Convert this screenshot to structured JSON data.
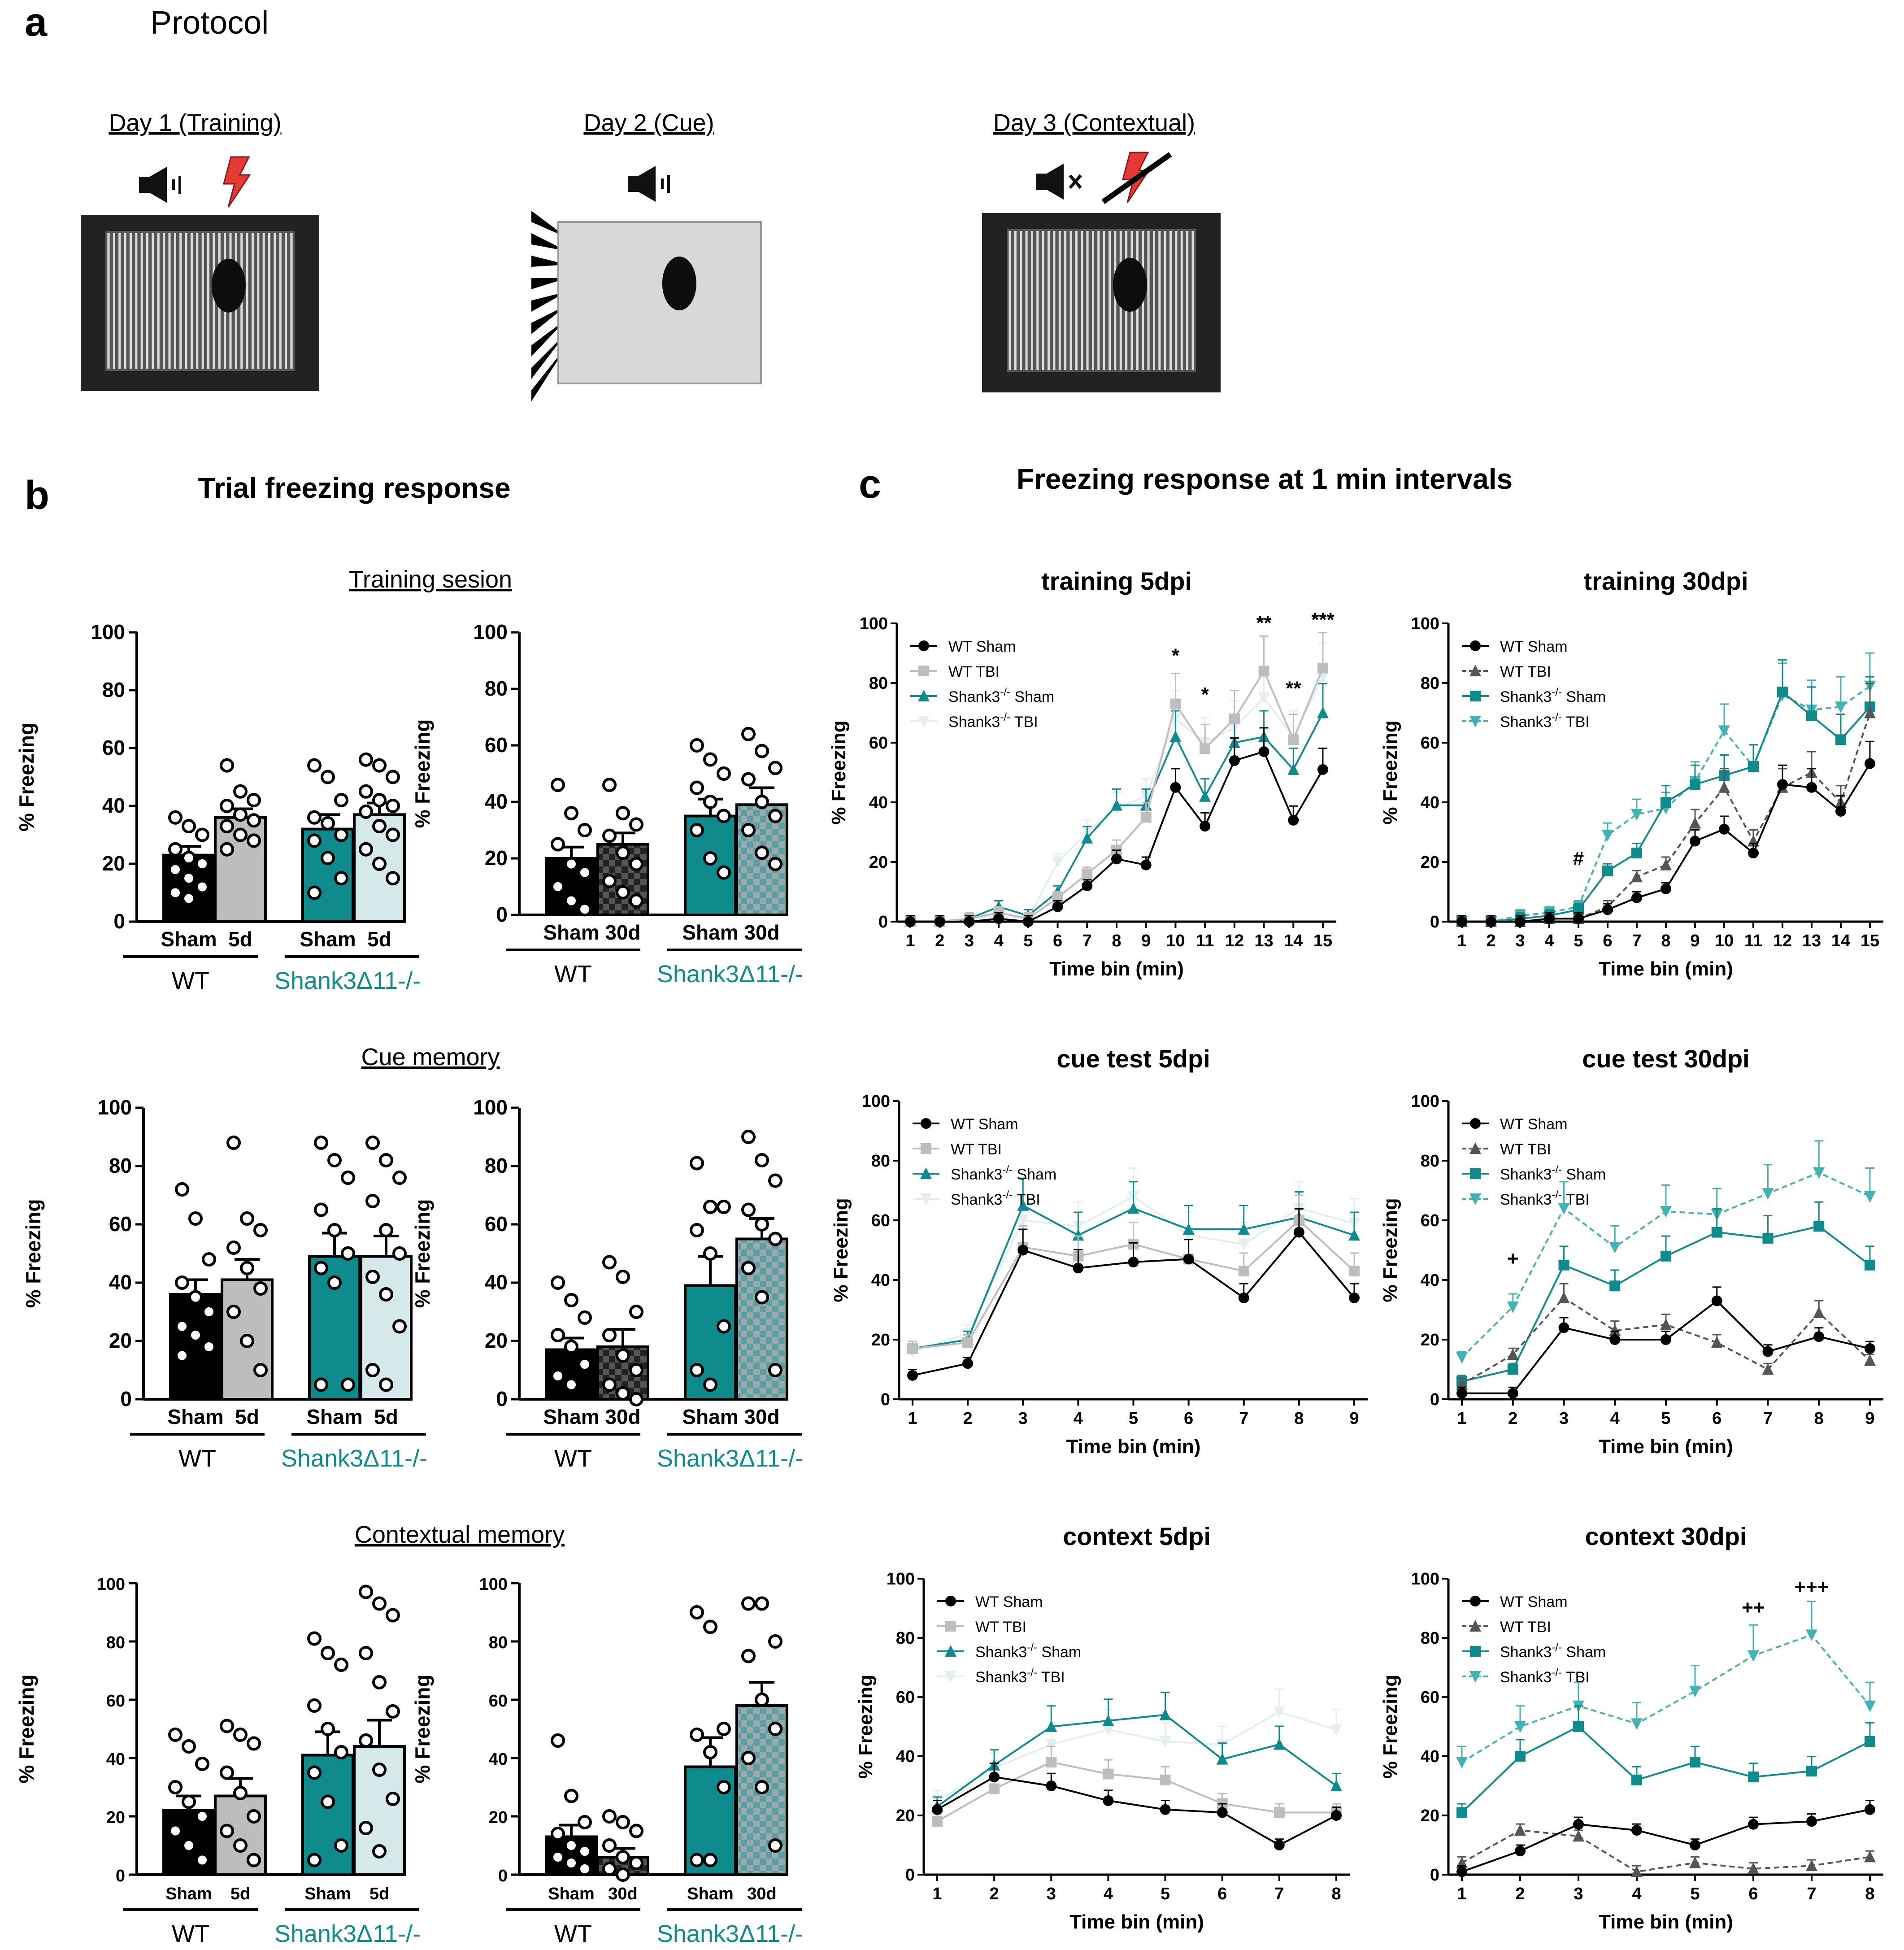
{
  "figure": {
    "panel_labels": [
      "a",
      "b",
      "c"
    ],
    "protocol_title": "Protocol",
    "days": [
      {
        "label": "Day 1 (Training)",
        "icons": [
          "speaker-icon",
          "shock-icon"
        ]
      },
      {
        "label": "Day 2 (Cue)",
        "icons": [
          "speaker-icon"
        ]
      },
      {
        "label": "Day 3 (Contextual)",
        "icons": [
          "speaker-muted-icon",
          "shock-crossed-icon"
        ]
      }
    ],
    "panel_b_title": "Trial freezing response",
    "panel_c_title": "Freezing response at 1 min intervals",
    "section_titles": [
      "Training sesion",
      "Cue memory",
      "Contextual memory"
    ],
    "group_labels": {
      "wt": "WT",
      "ko": "Shank3Δ11-/-"
    }
  },
  "colors": {
    "wt_sham": "#000000",
    "wt_tbi": "#bdbdbd",
    "ko_sham": "#0f8b8d",
    "ko_tbi": "#d5e8ea",
    "ko_tbi_line": "#43b2b2",
    "wt_tbi_line30": "#555555"
  },
  "chart_data": [
    {
      "type": "bar",
      "id": "b-train-5d",
      "title": "Training sesion",
      "ylabel": "% Freezing",
      "ylim": [
        0,
        100
      ],
      "yticks": [
        0,
        20,
        40,
        60,
        80,
        100
      ],
      "categories": [
        "Sham",
        "5d",
        "Sham",
        "5d"
      ],
      "groups": [
        "WT",
        "Shank3Δ11-/-"
      ],
      "values": [
        23,
        36,
        32,
        37
      ],
      "errors": [
        3,
        3,
        5,
        4
      ],
      "points": [
        [
          36,
          33,
          30,
          25,
          22,
          20,
          18,
          15,
          12,
          10,
          8
        ],
        [
          54,
          45,
          42,
          40,
          37,
          35,
          33,
          30,
          28,
          25
        ],
        [
          54,
          50,
          42,
          36,
          34,
          30,
          28,
          22,
          15,
          10
        ],
        [
          56,
          54,
          50,
          45,
          42,
          40,
          38,
          33,
          30,
          25,
          20,
          15
        ]
      ]
    },
    {
      "type": "bar",
      "id": "b-train-30d",
      "title": "",
      "ylabel": "% Freezing",
      "ylim": [
        0,
        100
      ],
      "yticks": [
        0,
        20,
        40,
        60,
        80,
        100
      ],
      "categories": [
        "Sham",
        "30d",
        "Sham",
        "30d"
      ],
      "groups": [
        "WT",
        "Shank3Δ11-/-"
      ],
      "values": [
        20,
        25,
        35,
        39
      ],
      "errors": [
        4,
        4,
        6,
        6
      ],
      "points": [
        [
          46,
          36,
          30,
          25,
          18,
          15,
          10,
          5,
          2
        ],
        [
          46,
          36,
          32,
          28,
          22,
          18,
          12,
          8,
          5
        ],
        [
          60,
          55,
          50,
          45,
          40,
          35,
          30,
          20,
          15
        ],
        [
          64,
          58,
          52,
          48,
          40,
          35,
          30,
          22,
          18
        ]
      ]
    },
    {
      "type": "bar",
      "id": "b-cue-5d",
      "title": "Cue memory",
      "ylabel": "% Freezing",
      "ylim": [
        0,
        100
      ],
      "yticks": [
        0,
        20,
        40,
        60,
        80,
        100
      ],
      "categories": [
        "Sham",
        "5d",
        "Sham",
        "5d"
      ],
      "groups": [
        "WT",
        "Shank3Δ11-/-"
      ],
      "values": [
        36,
        41,
        49,
        49
      ],
      "errors": [
        5,
        7,
        8,
        7
      ],
      "points": [
        [
          72,
          62,
          48,
          40,
          35,
          30,
          25,
          22,
          18,
          15
        ],
        [
          88,
          62,
          58,
          52,
          45,
          38,
          30,
          20,
          10
        ],
        [
          88,
          82,
          76,
          65,
          58,
          50,
          45,
          40,
          5,
          5
        ],
        [
          88,
          82,
          76,
          68,
          58,
          50,
          42,
          36,
          25,
          10,
          5
        ]
      ]
    },
    {
      "type": "bar",
      "id": "b-cue-30d",
      "title": "",
      "ylabel": "% Freezing",
      "ylim": [
        0,
        100
      ],
      "yticks": [
        0,
        20,
        40,
        60,
        80,
        100
      ],
      "categories": [
        "Sham",
        "30d",
        "Sham",
        "30d"
      ],
      "groups": [
        "WT",
        "Shank3Δ11-/-"
      ],
      "values": [
        17,
        18,
        39,
        55
      ],
      "errors": [
        4,
        6,
        10,
        7
      ],
      "points": [
        [
          40,
          34,
          28,
          22,
          18,
          12,
          8,
          5
        ],
        [
          47,
          42,
          30,
          22,
          15,
          10,
          5,
          2,
          0
        ],
        [
          81,
          66,
          66,
          58,
          50,
          25,
          10,
          5
        ],
        [
          90,
          82,
          75,
          65,
          60,
          55,
          45,
          35,
          10
        ]
      ]
    },
    {
      "type": "bar",
      "id": "b-context-5d",
      "title": "Contextual memory",
      "ylabel": "% Freezing",
      "ylim": [
        0,
        100
      ],
      "yticks": [
        0,
        20,
        40,
        60,
        80,
        100
      ],
      "categories": [
        "Sham",
        "5d",
        "Sham",
        "5d"
      ],
      "groups": [
        "WT",
        "Shank3Δ11-/-"
      ],
      "values": [
        22,
        27,
        41,
        44
      ],
      "errors": [
        5,
        6,
        8,
        9
      ],
      "points": [
        [
          48,
          44,
          38,
          30,
          25,
          20,
          15,
          10,
          5
        ],
        [
          51,
          48,
          45,
          35,
          28,
          20,
          15,
          10,
          5
        ],
        [
          81,
          76,
          72,
          58,
          50,
          42,
          35,
          25,
          10,
          5
        ],
        [
          97,
          93,
          89,
          76,
          66,
          56,
          46,
          36,
          26,
          16,
          8
        ]
      ]
    },
    {
      "type": "bar",
      "id": "b-context-30d",
      "title": "",
      "ylabel": "% Freezing",
      "ylim": [
        0,
        100
      ],
      "yticks": [
        0,
        20,
        40,
        60,
        80,
        100
      ],
      "categories": [
        "Sham",
        "30d",
        "Sham",
        "30d"
      ],
      "groups": [
        "WT",
        "Shank3Δ11-/-"
      ],
      "values": [
        13,
        6,
        37,
        58
      ],
      "errors": [
        4,
        3,
        10,
        8
      ],
      "points": [
        [
          46,
          27,
          18,
          14,
          10,
          8,
          6,
          4,
          2
        ],
        [
          20,
          18,
          15,
          10,
          6,
          4,
          2,
          0
        ],
        [
          90,
          85,
          50,
          48,
          42,
          30,
          5,
          5
        ],
        [
          93,
          93,
          80,
          75,
          60,
          50,
          40,
          30,
          10
        ]
      ]
    },
    {
      "type": "line",
      "id": "c-train-5dpi",
      "title": "training 5dpi",
      "xlabel": "Time bin (min)",
      "ylabel": "% Freezing",
      "x": [
        1,
        2,
        3,
        4,
        5,
        6,
        7,
        8,
        9,
        10,
        11,
        12,
        13,
        14,
        15
      ],
      "ylim": [
        0,
        100
      ],
      "yticks": [
        0,
        20,
        40,
        60,
        80,
        100
      ],
      "series": [
        {
          "name": "WT Sham",
          "marker": "circle",
          "values": [
            0,
            0,
            0,
            1,
            0,
            5,
            12,
            21,
            19,
            45,
            32,
            54,
            57,
            34,
            51
          ]
        },
        {
          "name": "WT TBI",
          "marker": "square",
          "values": [
            0,
            0,
            1,
            3,
            1,
            8,
            16,
            24,
            35,
            73,
            58,
            68,
            84,
            61,
            85
          ]
        },
        {
          "name": "Shank3-/- Sham",
          "sup": "-/-",
          "marker": "triangle",
          "values": [
            0,
            0,
            1,
            5,
            2,
            10,
            28,
            39,
            39,
            62,
            42,
            60,
            62,
            51,
            70
          ]
        },
        {
          "name": "Shank3-/- TBI",
          "sup": "-/-",
          "marker": "tri-down",
          "values": [
            0,
            0,
            1,
            2,
            1,
            20,
            30,
            38,
            42,
            68,
            60,
            65,
            75,
            62,
            82
          ]
        }
      ],
      "annotations": [
        {
          "x": 10,
          "text": "*"
        },
        {
          "x": 11,
          "text": "*"
        },
        {
          "x": 13,
          "text": "**"
        },
        {
          "x": 14,
          "text": "**"
        },
        {
          "x": 15,
          "text": "***"
        }
      ]
    },
    {
      "type": "line",
      "id": "c-train-30dpi",
      "title": "training 30dpi",
      "xlabel": "Time bin (min)",
      "ylabel": "% Freezing",
      "x": [
        1,
        2,
        3,
        4,
        5,
        6,
        7,
        8,
        9,
        10,
        11,
        12,
        13,
        14,
        15
      ],
      "ylim": [
        0,
        100
      ],
      "yticks": [
        0,
        20,
        40,
        60,
        80,
        100
      ],
      "series": [
        {
          "name": "WT Sham",
          "marker": "circle",
          "values": [
            0,
            0,
            0,
            1,
            1,
            4,
            8,
            11,
            27,
            31,
            23,
            46,
            45,
            37,
            53
          ]
        },
        {
          "name": "WT TBI",
          "marker": "triangle",
          "dashed": true,
          "values": [
            0,
            0,
            0,
            1,
            1,
            5,
            15,
            19,
            33,
            45,
            27,
            45,
            50,
            40,
            70
          ]
        },
        {
          "name": "Shank3-/- Sham",
          "sup": "-/-",
          "marker": "square",
          "values": [
            0,
            0,
            1,
            2,
            4,
            17,
            23,
            40,
            46,
            49,
            52,
            77,
            69,
            61,
            72
          ]
        },
        {
          "name": "Shank3-/- TBI",
          "sup": "-/-",
          "marker": "tri-down",
          "dashed": true,
          "values": [
            0,
            0,
            2,
            3,
            5,
            29,
            36,
            38,
            47,
            64,
            52,
            76,
            71,
            72,
            79
          ]
        }
      ],
      "annotations": [
        {
          "x": 5,
          "text": "#"
        }
      ]
    },
    {
      "type": "line",
      "id": "c-cue-5dpi",
      "title": "cue test 5dpi",
      "xlabel": "Time bin (min)",
      "ylabel": "% Freezing",
      "x": [
        1,
        2,
        3,
        4,
        5,
        6,
        7,
        8,
        9
      ],
      "ylim": [
        0,
        100
      ],
      "yticks": [
        0,
        20,
        40,
        60,
        80,
        100
      ],
      "series": [
        {
          "name": "WT Sham",
          "marker": "circle",
          "values": [
            8,
            12,
            50,
            44,
            46,
            47,
            34,
            56,
            34
          ]
        },
        {
          "name": "WT TBI",
          "marker": "square",
          "values": [
            17,
            19,
            51,
            48,
            52,
            47,
            43,
            60,
            43
          ]
        },
        {
          "name": "Shank3-/- Sham",
          "sup": "-/-",
          "marker": "triangle",
          "values": [
            17,
            20,
            65,
            55,
            64,
            57,
            57,
            61,
            55
          ]
        },
        {
          "name": "Shank3-/- TBI",
          "sup": "-/-",
          "marker": "tri-down",
          "values": [
            16,
            22,
            60,
            58,
            68,
            55,
            52,
            64,
            59
          ]
        }
      ],
      "annotations": []
    },
    {
      "type": "line",
      "id": "c-cue-30dpi",
      "title": "cue test 30dpi",
      "xlabel": "Time bin (min)",
      "ylabel": "% Freezing",
      "x": [
        1,
        2,
        3,
        4,
        5,
        6,
        7,
        8,
        9
      ],
      "ylim": [
        0,
        100
      ],
      "yticks": [
        0,
        20,
        40,
        60,
        80,
        100
      ],
      "series": [
        {
          "name": "WT Sham",
          "marker": "circle",
          "values": [
            2,
            2,
            24,
            20,
            20,
            33,
            16,
            21,
            17
          ]
        },
        {
          "name": "WT TBI",
          "marker": "triangle",
          "dashed": true,
          "values": [
            5,
            15,
            34,
            23,
            25,
            19,
            10,
            29,
            13
          ]
        },
        {
          "name": "Shank3-/- Sham",
          "sup": "-/-",
          "marker": "square",
          "values": [
            6,
            10,
            45,
            38,
            48,
            56,
            54,
            58,
            45
          ]
        },
        {
          "name": "Shank3-/- TBI",
          "sup": "-/-",
          "marker": "tri-down",
          "dashed": true,
          "values": [
            14,
            31,
            64,
            51,
            63,
            62,
            69,
            76,
            68
          ]
        }
      ],
      "annotations": [
        {
          "x": 2,
          "text": "+"
        }
      ]
    },
    {
      "type": "line",
      "id": "c-context-5dpi",
      "title": "context 5dpi",
      "xlabel": "Time bin (min)",
      "ylabel": "% Freezing",
      "x": [
        1,
        2,
        3,
        4,
        5,
        6,
        7,
        8
      ],
      "ylim": [
        0,
        100
      ],
      "yticks": [
        0,
        20,
        40,
        60,
        80,
        100
      ],
      "series": [
        {
          "name": "WT Sham",
          "marker": "circle",
          "values": [
            22,
            33,
            30,
            25,
            22,
            21,
            10,
            20
          ]
        },
        {
          "name": "WT TBI",
          "marker": "square",
          "values": [
            18,
            29,
            38,
            34,
            32,
            24,
            21,
            21
          ]
        },
        {
          "name": "Shank3-/- Sham",
          "sup": "-/-",
          "marker": "triangle",
          "values": [
            23,
            37,
            50,
            52,
            54,
            39,
            44,
            30
          ]
        },
        {
          "name": "Shank3-/- TBI",
          "sup": "-/-",
          "marker": "tri-down",
          "values": [
            25,
            36,
            44,
            49,
            45,
            44,
            55,
            49
          ]
        }
      ],
      "annotations": []
    },
    {
      "type": "line",
      "id": "c-context-30dpi",
      "title": "context 30dpi",
      "xlabel": "Time bin (min)",
      "ylabel": "% Freezing",
      "x": [
        1,
        2,
        3,
        4,
        5,
        6,
        7,
        8
      ],
      "ylim": [
        0,
        100
      ],
      "yticks": [
        0,
        20,
        40,
        60,
        80,
        100
      ],
      "series": [
        {
          "name": "WT Sham",
          "marker": "circle",
          "values": [
            1,
            8,
            17,
            15,
            10,
            17,
            18,
            22
          ]
        },
        {
          "name": "WT TBI",
          "marker": "triangle",
          "dashed": true,
          "values": [
            4,
            15,
            13,
            1,
            4,
            2,
            3,
            6
          ]
        },
        {
          "name": "Shank3-/- Sham",
          "sup": "-/-",
          "marker": "square",
          "values": [
            21,
            40,
            50,
            32,
            38,
            33,
            35,
            45
          ]
        },
        {
          "name": "Shank3-/- TBI",
          "sup": "-/-",
          "marker": "tri-down",
          "dashed": true,
          "values": [
            38,
            50,
            57,
            51,
            62,
            74,
            81,
            57
          ]
        }
      ],
      "annotations": [
        {
          "x": 6,
          "text": "++"
        },
        {
          "x": 7,
          "text": "+++"
        }
      ]
    }
  ]
}
